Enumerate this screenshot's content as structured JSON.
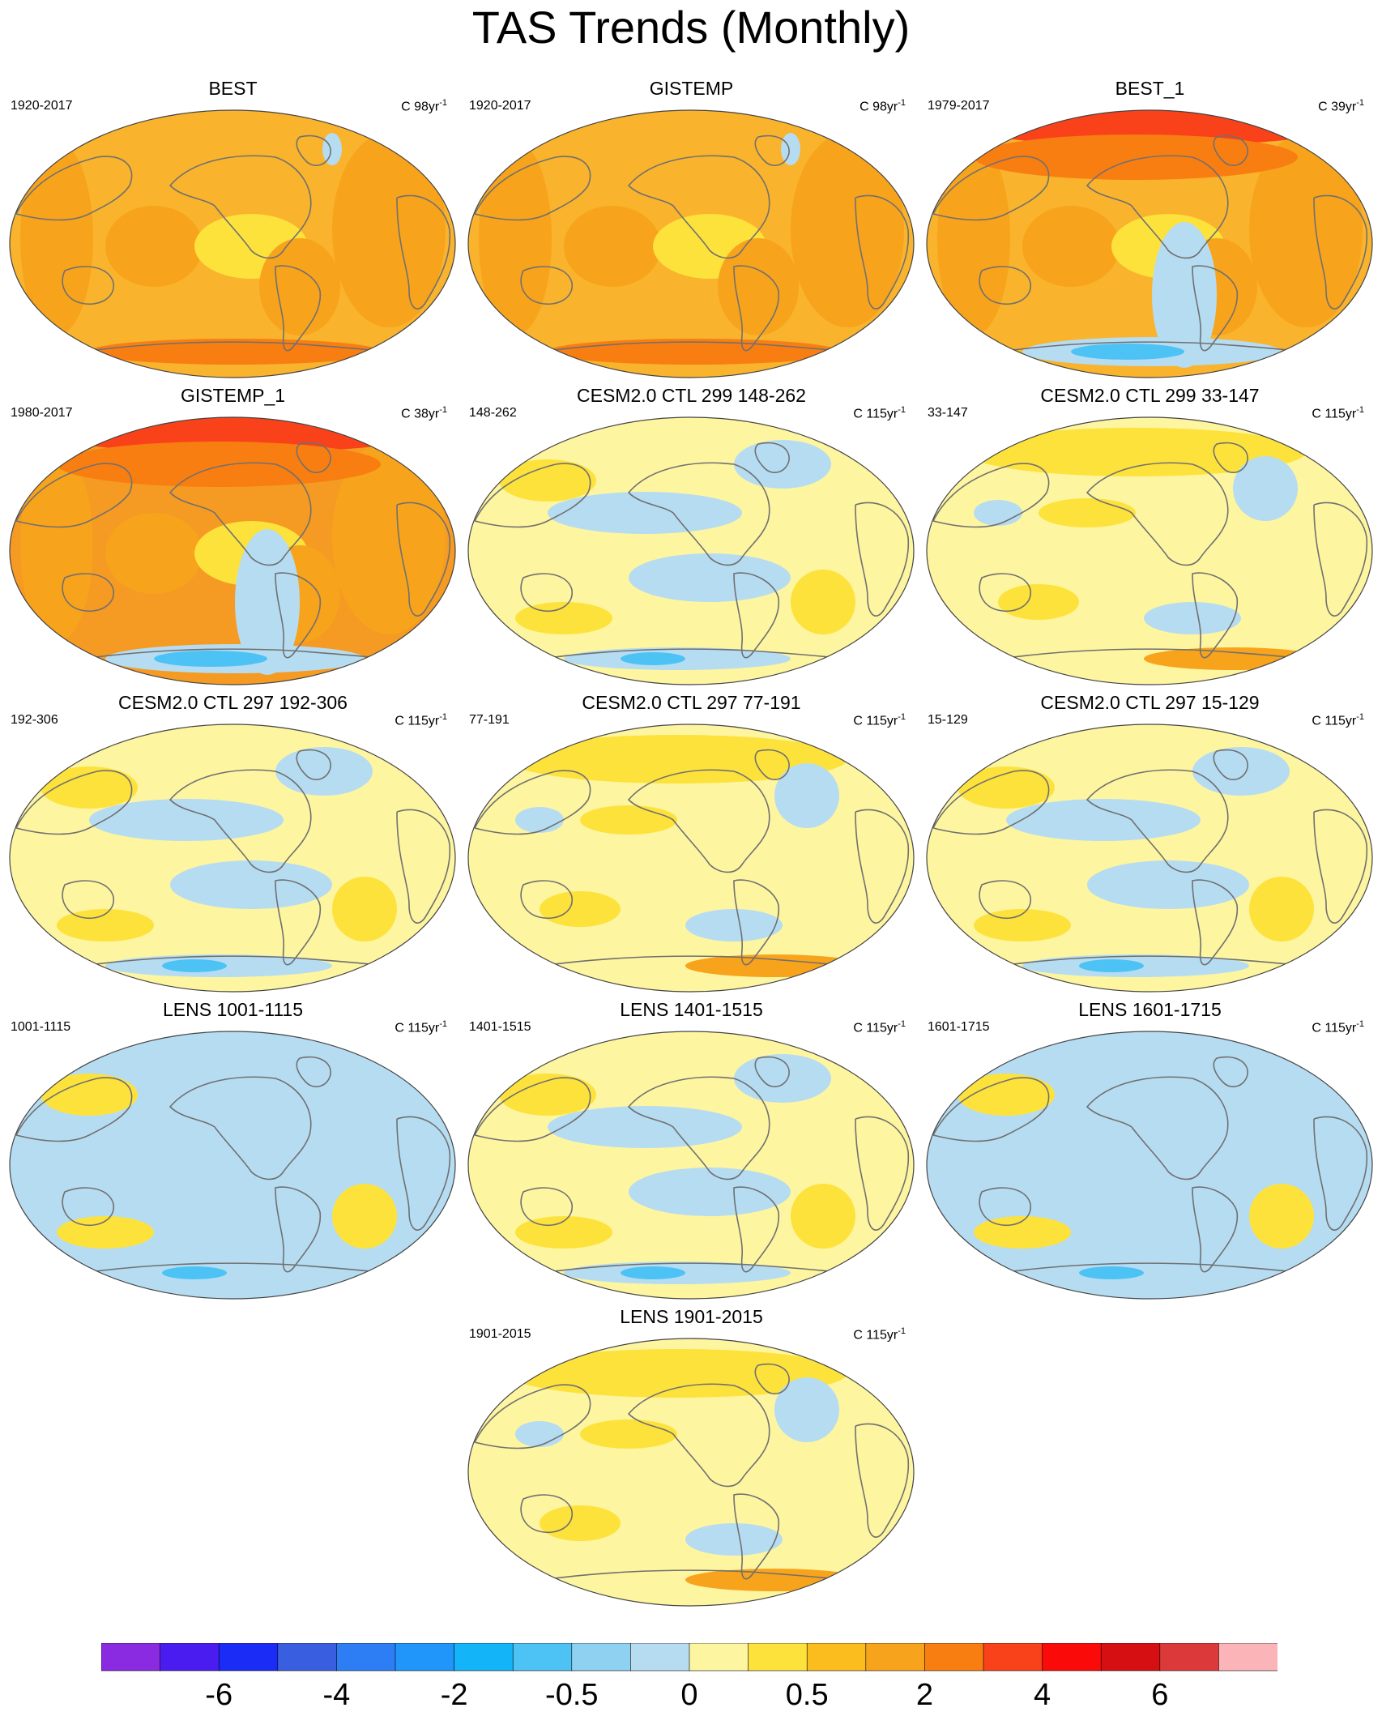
{
  "title": "TAS Trends (Monthly)",
  "panels": [
    {
      "title": "BEST",
      "period": "1920-2017",
      "units": "C 98yr",
      "exp": "-1",
      "bg": "#f9b32c",
      "style": "warm"
    },
    {
      "title": "GISTEMP",
      "period": "1920-2017",
      "units": "C 98yr",
      "exp": "-1",
      "bg": "#f9b32c",
      "style": "warm"
    },
    {
      "title": "BEST_1",
      "period": "1979-2017",
      "units": "C 39yr",
      "exp": "-1",
      "bg": "#f9b32c",
      "style": "warm-arctic"
    },
    {
      "title": "GISTEMP_1",
      "period": "1980-2017",
      "units": "C 38yr",
      "exp": "-1",
      "bg": "#f59a22",
      "style": "warm-arctic"
    },
    {
      "title": "CESM2.0 CTL 299 148-262",
      "period": "148-262",
      "units": "C 115yr",
      "exp": "-1",
      "bg": "#fdf5a0",
      "style": "cool"
    },
    {
      "title": "CESM2.0 CTL 299 33-147",
      "period": "33-147",
      "units": "C 115yr",
      "exp": "-1",
      "bg": "#fdf5a0",
      "style": "mild"
    },
    {
      "title": "CESM2.0 CTL 297 192-306",
      "period": "192-306",
      "units": "C 115yr",
      "exp": "-1",
      "bg": "#fdf5a0",
      "style": "cool"
    },
    {
      "title": "CESM2.0 CTL 297 77-191",
      "period": "77-191",
      "units": "C 115yr",
      "exp": "-1",
      "bg": "#fdf5a0",
      "style": "mild"
    },
    {
      "title": "CESM2.0 CTL 297 15-129",
      "period": "15-129",
      "units": "C 115yr",
      "exp": "-1",
      "bg": "#fdf5a0",
      "style": "cool"
    },
    {
      "title": "LENS 1001-1115",
      "period": "1001-1115",
      "units": "C 115yr",
      "exp": "-1",
      "bg": "#b6dcf2",
      "style": "cool"
    },
    {
      "title": "LENS 1401-1515",
      "period": "1401-1515",
      "units": "C 115yr",
      "exp": "-1",
      "bg": "#fdf5a0",
      "style": "cool"
    },
    {
      "title": "LENS 1601-1715",
      "period": "1601-1715",
      "units": "C 115yr",
      "exp": "-1",
      "bg": "#b6dcf2",
      "style": "cool"
    },
    {
      "title": "LENS 1901-2015",
      "period": "1901-2015",
      "units": "C 115yr",
      "exp": "-1",
      "bg": "#fdf5a0",
      "style": "mild"
    }
  ],
  "colorbar": {
    "colors": [
      "#8a2be2",
      "#4b1cf0",
      "#1a2cf5",
      "#3a5ee0",
      "#2d7ef5",
      "#2196fa",
      "#13b4f8",
      "#4dc3f5",
      "#8fd1f0",
      "#b6dcf2",
      "#fdf5a0",
      "#fde23c",
      "#fbbd1e",
      "#f8a31c",
      "#f87e12",
      "#f9421a",
      "#fb0a0a",
      "#d60f12",
      "#dc3a3a",
      "#fbb5b8"
    ],
    "labels": [
      "-6",
      "-4",
      "-2",
      "-0.5",
      "0",
      "0.5",
      "2",
      "4",
      "6"
    ]
  },
  "palette": {
    "cool": "#b6dcf2",
    "cool_deep": "#4dc3f5",
    "warm_light": "#fde23c",
    "warm": "#f8a31c",
    "warm_deep": "#f87e12",
    "hot": "#f9421a",
    "coast": "#707070"
  }
}
